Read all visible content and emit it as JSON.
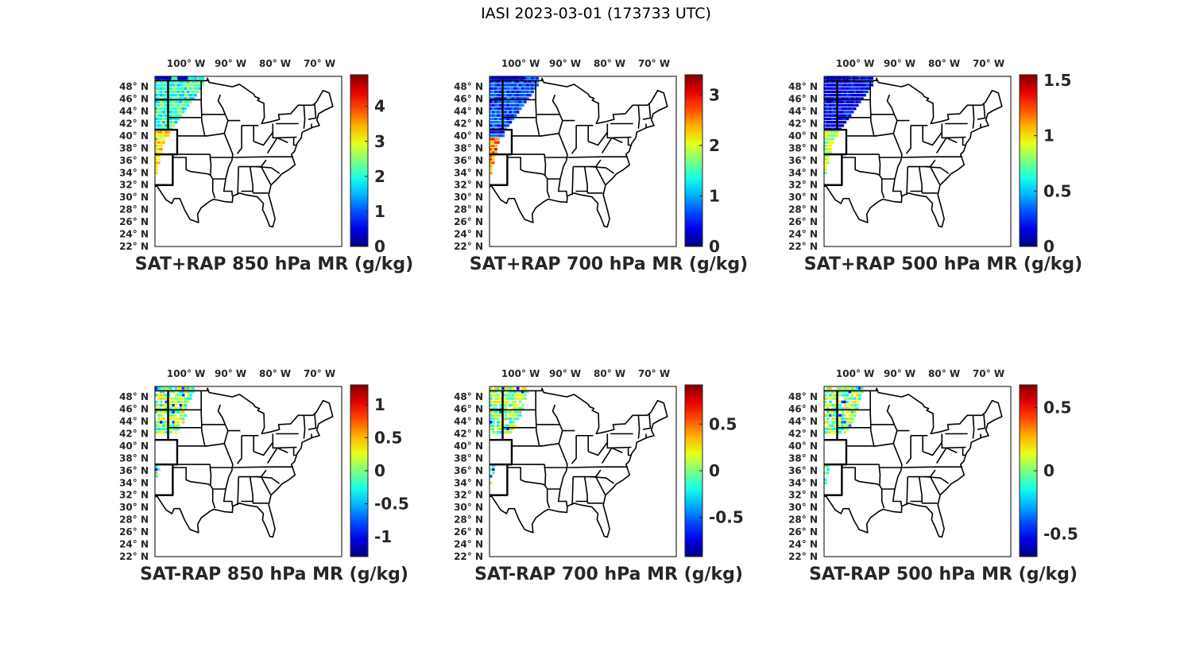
{
  "figure": {
    "title": "IASI 2023-03-01 (173733 UTC)",
    "lon_ticks": [
      "100° W",
      "90° W",
      "80° W",
      "70° W"
    ],
    "lat_ticks": [
      "48° N",
      "46° N",
      "44° N",
      "42° N",
      "40° N",
      "38° N",
      "36° N",
      "34° N",
      "32° N",
      "30° N",
      "28° N",
      "26° N",
      "24° N",
      "22° N"
    ],
    "colormap": "jet"
  },
  "panels": [
    {
      "title": "SAT+RAP 850 hPa MR (g/kg)",
      "cbar_range": [
        0,
        4.9
      ],
      "cbar_ticks": [
        "0",
        "1",
        "2",
        "3",
        "4"
      ],
      "data_summary": "swath over northern Plains and Southwest",
      "swath": "wide"
    },
    {
      "title": "SAT+RAP 700 hPa MR (g/kg)",
      "cbar_range": [
        0,
        3.4
      ],
      "cbar_ticks": [
        "0",
        "1",
        "2",
        "3"
      ],
      "swath": "wide"
    },
    {
      "title": "SAT+RAP 500 hPa MR (g/kg)",
      "cbar_range": [
        0,
        1.55
      ],
      "cbar_ticks": [
        "0",
        "0.5",
        "1",
        "1.5"
      ],
      "swath": "wide"
    },
    {
      "title": "SAT-RAP 850 hPa MR (g/kg)",
      "cbar_range": [
        -1.3,
        1.3
      ],
      "cbar_ticks": [
        "-1",
        "-0.5",
        "0",
        "0.5",
        "1"
      ],
      "swath": "partial"
    },
    {
      "title": "SAT-RAP 700 hPa MR (g/kg)",
      "cbar_range": [
        -0.92,
        0.92
      ],
      "cbar_ticks": [
        "-0.5",
        "0",
        "0.5"
      ],
      "swath": "partial"
    },
    {
      "title": "SAT-RAP 500 hPa MR (g/kg)",
      "cbar_range": [
        -0.68,
        0.68
      ],
      "cbar_ticks": [
        "-0.5",
        "0",
        "0.5"
      ],
      "swath": "partial"
    }
  ]
}
